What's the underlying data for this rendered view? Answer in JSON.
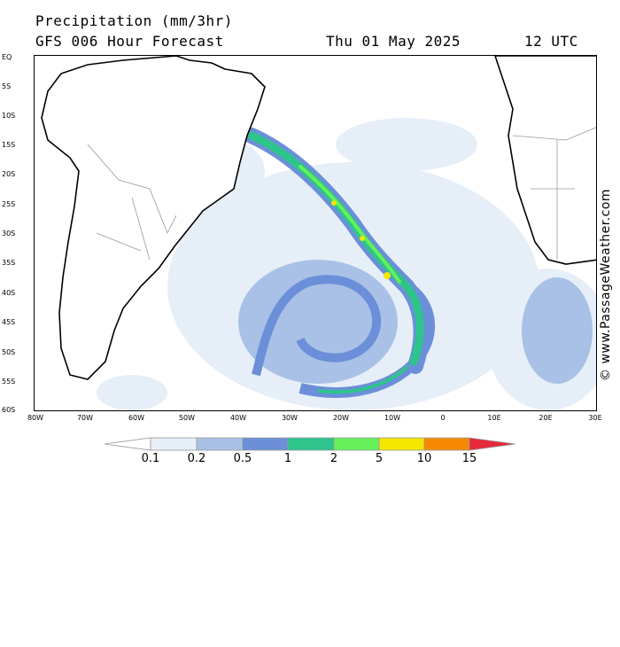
{
  "header": {
    "title": "Precipitation (mm/3hr)",
    "subtitle": "GFS 006 Hour Forecast",
    "valid_date": "Thu 01 May 2025",
    "valid_time": "12 UTC"
  },
  "credit": "© www.PassageWeather.com",
  "axes": {
    "lat_labels": [
      "EQ",
      "5S",
      "10S",
      "15S",
      "20S",
      "25S",
      "30S",
      "35S",
      "40S",
      "45S",
      "50S",
      "55S",
      "60S"
    ],
    "lon_labels": [
      "80W",
      "70W",
      "60W",
      "50W",
      "40W",
      "30W",
      "20W",
      "10W",
      "0",
      "10E",
      "20E",
      "30E"
    ]
  },
  "legend": {
    "ticks": [
      "0.1",
      "0.2",
      "0.5",
      "1",
      "2",
      "5",
      "10",
      "15"
    ],
    "colors": [
      "#ffffff",
      "#e6eef8",
      "#a9c1e6",
      "#6b8fd8",
      "#2ec48c",
      "#66f05a",
      "#f5e600",
      "#f58a00",
      "#e8293c"
    ]
  },
  "map": {
    "region": "South Atlantic",
    "land_color": "#ffffff",
    "coast_color": "#000000",
    "border_color": "#999999"
  }
}
